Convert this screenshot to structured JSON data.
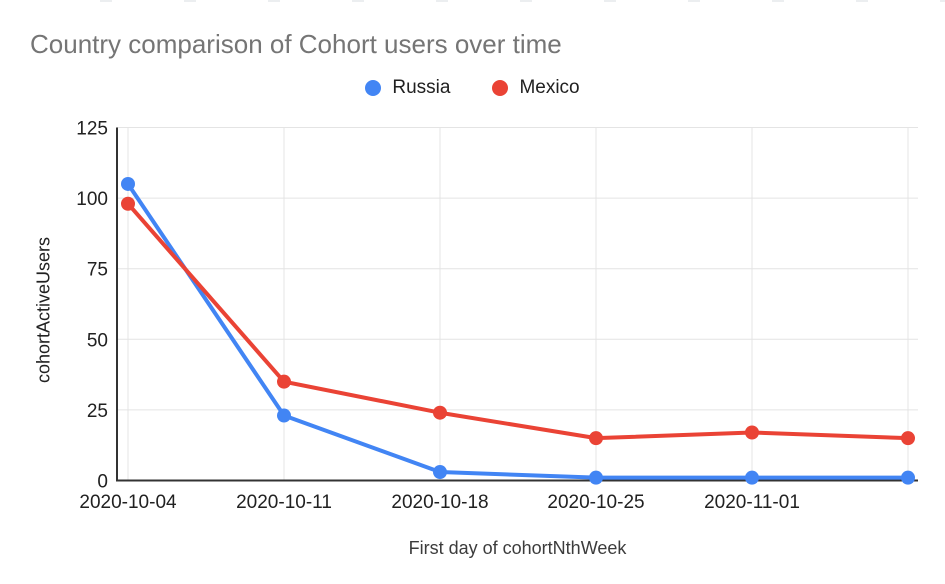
{
  "header": {
    "title": "Country comparison of Cohort users over time"
  },
  "chart_data": {
    "type": "line",
    "title": "Country comparison of Cohort users over time",
    "xlabel": "First day of cohortNthWeek",
    "ylabel": "cohortActiveUsers",
    "categories": [
      "2020-10-04",
      "2020-10-11",
      "2020-10-18",
      "2020-10-25",
      "2020-11-01",
      ""
    ],
    "series": [
      {
        "name": "Russia",
        "color": "#4285F4",
        "values": [
          105,
          23,
          3,
          1,
          1,
          1
        ]
      },
      {
        "name": "Mexico",
        "color": "#EA4335",
        "values": [
          98,
          35,
          24,
          15,
          17,
          15
        ]
      }
    ],
    "ylim": [
      0,
      125
    ],
    "yticks": [
      0,
      25,
      50,
      75,
      100,
      125
    ],
    "grid": true,
    "legend_position": "top-center",
    "marker": "circle"
  },
  "colors": {
    "background": "#ffffff",
    "title_text": "#757575",
    "tick_text": "#212121",
    "axis_title_text": "#3c3c3c",
    "axis_line": "#333333",
    "gridline": "#e4e4e4",
    "series_russia": "#4285F4",
    "series_mexico": "#EA4335"
  }
}
